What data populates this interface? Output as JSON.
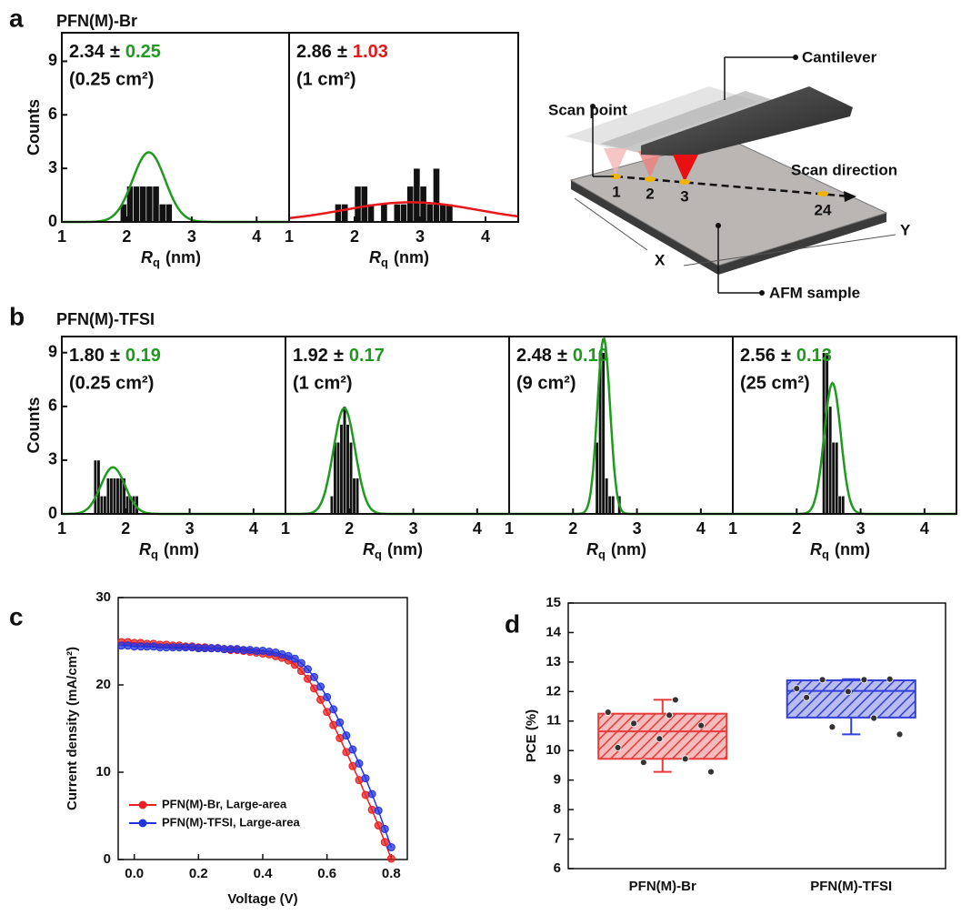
{
  "panel_labels": [
    "a",
    "b",
    "c",
    "d"
  ],
  "row_titles": [
    "PFN(M)-Br",
    "PFN(M)-TFSI"
  ],
  "diagram": {
    "labels": {
      "cantilever": "Cantilever",
      "scan_point": "Scan point",
      "scan_direction": "Scan direction",
      "points": [
        "1",
        "2",
        "3",
        "24"
      ],
      "x_axis": "X",
      "y_axis": "Y",
      "sample": "AFM sample"
    }
  },
  "chart_data": [
    {
      "type": "histogram",
      "bins": [
        1.9,
        2.0,
        2.1,
        2.2,
        2.3,
        2.4,
        2.5,
        2.6,
        2.7
      ],
      "counts": [
        1,
        2,
        2,
        2,
        2,
        2,
        1,
        1
      ],
      "color": "#111111",
      "xlim": [
        1,
        4.5
      ],
      "ylim": [
        0,
        10.6
      ],
      "xticks": [
        1,
        2,
        3,
        4
      ],
      "yticks": [
        0,
        3,
        6,
        9
      ],
      "y_label": "Counts",
      "x_label": {
        "symbol": "R",
        "sub": "q",
        "unit": "(nm)"
      },
      "fit": {
        "mean": 2.34,
        "sd": 0.25,
        "peak": 3.9,
        "color": "#1f9a1f",
        "mean_label": "2.34",
        "sd_label": "0.25"
      },
      "annotation": {
        "pm": "±",
        "area": "(0.25 cm²)"
      }
    },
    {
      "type": "histogram",
      "bins": [
        1.7,
        1.8,
        1.9,
        2.0,
        2.1,
        2.2,
        2.3,
        2.4,
        2.5,
        2.6,
        2.7,
        2.8,
        2.9,
        3.0,
        3.1,
        3.2,
        3.3,
        3.4,
        3.5
      ],
      "counts": [
        1,
        1,
        0,
        2,
        2,
        1,
        0,
        1,
        0,
        1,
        1,
        2,
        3,
        2,
        1,
        3,
        1,
        1
      ],
      "color": "#111111",
      "xlim": [
        1,
        4.5
      ],
      "ylim": [
        0,
        10.6
      ],
      "xticks": [
        1,
        2,
        3,
        4
      ],
      "x_label": {
        "symbol": "R",
        "sub": "q",
        "unit": "(nm)"
      },
      "fit": {
        "mean": 2.86,
        "sd": 1.03,
        "peak": 1.1,
        "color": "#e8181a",
        "mean_label": "2.86",
        "sd_label": "1.03"
      },
      "annotation": {
        "pm": "±",
        "area": "(1 cm²)"
      }
    },
    {
      "type": "histogram",
      "bins": [
        1.5,
        1.55,
        1.6,
        1.65,
        1.7,
        1.75,
        1.8,
        1.85,
        1.9,
        1.95,
        2.0,
        2.05,
        2.1,
        2.15,
        2.2
      ],
      "counts": [
        3,
        3,
        1,
        1,
        2,
        2,
        2,
        2,
        2,
        2,
        1,
        1,
        1,
        1
      ],
      "color": "#111111",
      "xlim": [
        1,
        4.5
      ],
      "ylim": [
        0,
        9.9
      ],
      "xticks": [
        1,
        2,
        3,
        4
      ],
      "yticks": [
        0,
        3,
        6,
        9
      ],
      "y_label": "Counts",
      "x_label": {
        "symbol": "R",
        "sub": "q",
        "unit": "(nm)"
      },
      "fit": {
        "mean": 1.8,
        "sd": 0.19,
        "peak": 2.6,
        "color": "#1f9a1f",
        "mean_label": "1.80",
        "sd_label": "0.19"
      },
      "annotation": {
        "pm": "±",
        "area": "(0.25 cm²)"
      }
    },
    {
      "type": "histogram",
      "bins": [
        1.7,
        1.75,
        1.8,
        1.85,
        1.9,
        1.95,
        2.0,
        2.05,
        2.1,
        2.15
      ],
      "counts": [
        1,
        4,
        4,
        5,
        6,
        5,
        4,
        2,
        2
      ],
      "color": "#111111",
      "xlim": [
        1,
        4.5
      ],
      "ylim": [
        0,
        9.9
      ],
      "xticks": [
        1,
        2,
        3,
        4
      ],
      "x_label": {
        "symbol": "R",
        "sub": "q",
        "unit": "(nm)"
      },
      "fit": {
        "mean": 1.92,
        "sd": 0.17,
        "peak": 5.9,
        "color": "#1f9a1f",
        "mean_label": "1.92",
        "sd_label": "0.17"
      },
      "annotation": {
        "pm": "±",
        "area": "(1 cm²)"
      }
    },
    {
      "type": "histogram",
      "bins": [
        2.35,
        2.4,
        2.45,
        2.5,
        2.55,
        2.6,
        2.65,
        2.7,
        2.75
      ],
      "counts": [
        4,
        9,
        9,
        2,
        1,
        1,
        0,
        1
      ],
      "color": "#111111",
      "xlim": [
        1,
        4.5
      ],
      "ylim": [
        0,
        9.9
      ],
      "xticks": [
        1,
        2,
        3,
        4
      ],
      "x_label": {
        "symbol": "R",
        "sub": "q",
        "unit": "(nm)"
      },
      "fit": {
        "mean": 2.48,
        "sd": 0.1,
        "peak": 9.8,
        "color": "#1f9a1f",
        "mean_label": "2.48",
        "sd_label": "0.10"
      },
      "annotation": {
        "pm": "±",
        "area": "(9 cm²)"
      }
    },
    {
      "type": "histogram",
      "bins": [
        2.4,
        2.45,
        2.5,
        2.55,
        2.6,
        2.65,
        2.7,
        2.75
      ],
      "counts": [
        9,
        9,
        6,
        4,
        4,
        1,
        1
      ],
      "color": "#111111",
      "xlim": [
        1,
        4.5
      ],
      "ylim": [
        0,
        9.9
      ],
      "xticks": [
        1,
        2,
        3,
        4
      ],
      "x_label": {
        "symbol": "R",
        "sub": "q",
        "unit": "(nm)"
      },
      "fit": {
        "mean": 2.56,
        "sd": 0.13,
        "peak": 7.3,
        "color": "#1f9a1f",
        "mean_label": "2.56",
        "sd_label": "0.13"
      },
      "annotation": {
        "pm": "±",
        "area": "(25 cm²)"
      }
    },
    {
      "type": "line",
      "x_label": "Voltage (V)",
      "y_label": "Current density (mA/cm²)",
      "x": [
        -0.04,
        -0.02,
        0,
        0.02,
        0.04,
        0.06,
        0.08,
        0.1,
        0.12,
        0.14,
        0.16,
        0.18,
        0.2,
        0.22,
        0.24,
        0.26,
        0.28,
        0.3,
        0.32,
        0.34,
        0.36,
        0.38,
        0.4,
        0.42,
        0.44,
        0.46,
        0.48,
        0.5,
        0.52,
        0.54,
        0.56,
        0.58,
        0.6,
        0.62,
        0.64,
        0.66,
        0.68,
        0.7,
        0.72,
        0.74,
        0.76,
        0.78,
        0.8
      ],
      "series": [
        {
          "name": "PFN(M)-Br, Large-area",
          "color": "#e82020",
          "values": [
            24.9,
            24.9,
            24.8,
            24.8,
            24.7,
            24.7,
            24.6,
            24.6,
            24.5,
            24.5,
            24.4,
            24.4,
            24.3,
            24.3,
            24.2,
            24.2,
            24.1,
            24.0,
            24.0,
            23.9,
            23.8,
            23.7,
            23.6,
            23.5,
            23.3,
            23.1,
            22.8,
            22.3,
            21.6,
            20.7,
            19.6,
            18.3,
            16.9,
            15.4,
            13.9,
            12.3,
            10.7,
            9.1,
            7.4,
            5.7,
            3.9,
            2.0,
            0.1
          ]
        },
        {
          "name": "PFN(M)-TFSI, Large-area",
          "color": "#2233e0",
          "values": [
            24.5,
            24.5,
            24.4,
            24.4,
            24.4,
            24.4,
            24.3,
            24.3,
            24.3,
            24.3,
            24.3,
            24.3,
            24.2,
            24.2,
            24.2,
            24.2,
            24.1,
            24.1,
            24.1,
            24.0,
            24.0,
            23.9,
            23.9,
            23.8,
            23.7,
            23.5,
            23.3,
            23.0,
            22.5,
            21.8,
            20.9,
            19.8,
            18.6,
            17.2,
            15.7,
            14.2,
            12.6,
            11.0,
            9.3,
            7.5,
            5.6,
            3.5,
            1.4
          ]
        }
      ],
      "xlim": [
        -0.05,
        0.85
      ],
      "ylim": [
        0,
        30
      ],
      "xticks": [
        {
          "value": 0,
          "label": "0.0"
        },
        0.2,
        0.4,
        0.6,
        0.8
      ],
      "yticks": [
        0,
        10,
        20,
        30
      ],
      "legend": "lower left"
    },
    {
      "type": "box",
      "y_label": "PCE (%)",
      "categories": [
        "PFN(M)-Br",
        "PFN(M)-TFSI"
      ],
      "boxes": [
        {
          "q1": 9.72,
          "median": 10.65,
          "q3": 11.25,
          "whisker_low": 9.28,
          "whisker_high": 11.72,
          "color": "#e53b3b",
          "points": [
            11.3,
            11.72,
            10.92,
            10.85,
            10.4,
            10.1,
            9.72,
            9.6,
            9.28,
            11.2
          ]
        },
        {
          "q1": 11.12,
          "median": 12.02,
          "q3": 12.38,
          "whisker_low": 10.55,
          "whisker_high": 12.42,
          "color": "#3340d6",
          "points": [
            12.1,
            12.4,
            12.4,
            12.42,
            12.0,
            11.8,
            11.1,
            10.8,
            10.55
          ]
        }
      ],
      "ylim": [
        6,
        15
      ],
      "yticks": [
        6,
        7,
        8,
        9,
        10,
        11,
        12,
        13,
        14,
        15
      ]
    }
  ]
}
